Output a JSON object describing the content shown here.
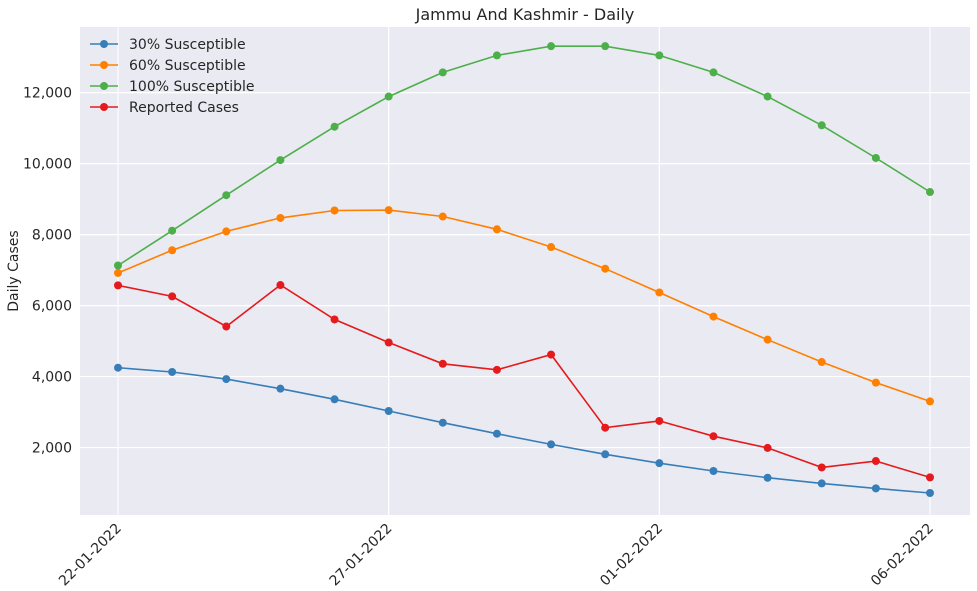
{
  "chart_data": {
    "type": "line",
    "title": "Jammu And Kashmir - Daily",
    "xlabel": "",
    "ylabel": "Daily Cases",
    "x": [
      "22-01-2022",
      "23-01-2022",
      "24-01-2022",
      "25-01-2022",
      "26-01-2022",
      "27-01-2022",
      "28-01-2022",
      "29-01-2022",
      "30-01-2022",
      "31-01-2022",
      "01-02-2022",
      "02-02-2022",
      "03-02-2022",
      "04-02-2022",
      "05-02-2022",
      "06-02-2022"
    ],
    "x_tick_labels": [
      "22-01-2022",
      "27-01-2022",
      "01-02-2022",
      "06-02-2022"
    ],
    "y_ticks": [
      2000,
      4000,
      6000,
      8000,
      10000,
      12000
    ],
    "y_tick_labels": [
      "2,000",
      "4,000",
      "6,000",
      "8,000",
      "10,000",
      "12,000"
    ],
    "ylim": [
      100,
      13850
    ],
    "grid": true,
    "legend_position": "top-left",
    "series": [
      {
        "name": "30% Susceptible",
        "color": "#377eb8",
        "values": [
          4250,
          4130,
          3930,
          3660,
          3360,
          3030,
          2700,
          2390,
          2090,
          1810,
          1560,
          1340,
          1150,
          990,
          850,
          720
        ]
      },
      {
        "name": "60% Susceptible",
        "color": "#ff7f00",
        "values": [
          6920,
          7560,
          8090,
          8470,
          8680,
          8690,
          8510,
          8150,
          7650,
          7040,
          6370,
          5690,
          5040,
          4410,
          3830,
          3300
        ]
      },
      {
        "name": "100% Susceptible",
        "color": "#4daf4a",
        "values": [
          7130,
          8110,
          9110,
          10100,
          11040,
          11890,
          12570,
          13050,
          13310,
          13310,
          13050,
          12570,
          11890,
          11080,
          10160,
          9200
        ]
      },
      {
        "name": "Reported Cases",
        "color": "#e41a1c",
        "values": [
          6570,
          6260,
          5410,
          6580,
          5610,
          4960,
          4360,
          4190,
          4620,
          2560,
          2750,
          2320,
          1990,
          1440,
          1620,
          1160
        ]
      }
    ]
  }
}
